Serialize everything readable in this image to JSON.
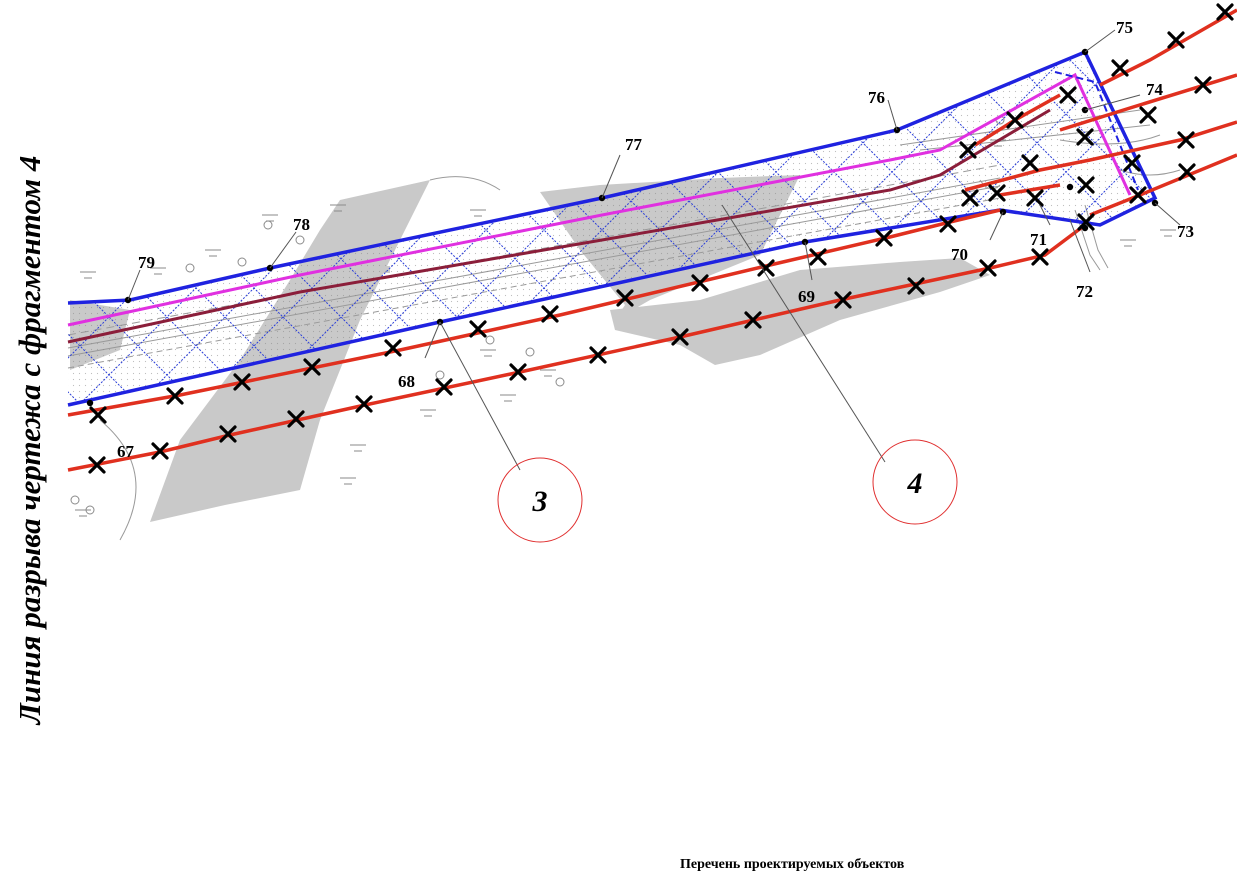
{
  "side_caption": "Линия разрыва чертежа с фрагментом 4",
  "point_labels": [
    "67",
    "68",
    "69",
    "70",
    "71",
    "72",
    "73",
    "74",
    "75",
    "76",
    "77",
    "78",
    "79"
  ],
  "callouts": [
    "3",
    "4"
  ],
  "list_title": "Перечень проектируемых объектов",
  "colors": {
    "boundary": "#1f22e0",
    "hatch": "#2b3fd8",
    "magenta_line": "#e030e0",
    "maroon_line": "#8b1e3a",
    "red_line": "#e0301f",
    "shaded_area": "#c9c9c9",
    "callout_circle": "#e03030"
  }
}
